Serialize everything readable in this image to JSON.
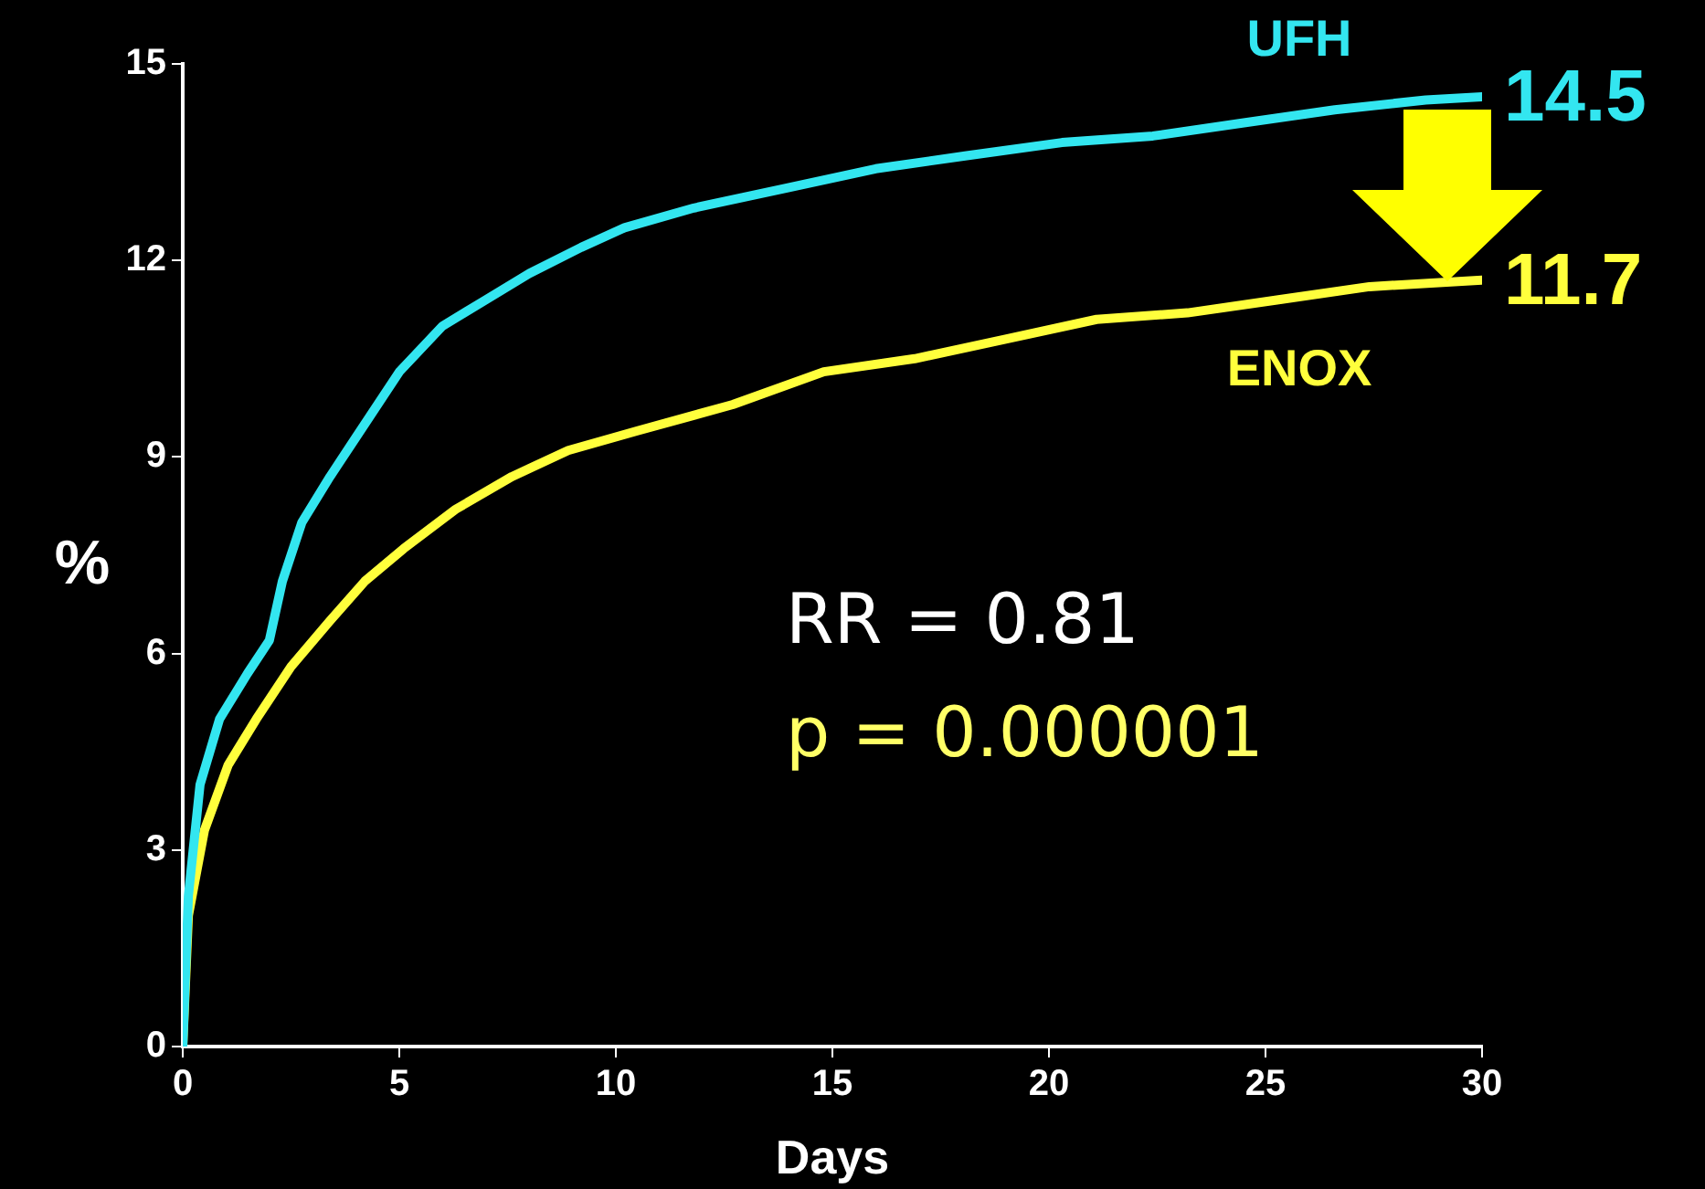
{
  "chart_data": {
    "type": "line",
    "xlabel": "Days",
    "ylabel": "%",
    "xlim": [
      0,
      30
    ],
    "ylim": [
      0,
      15
    ],
    "xticks": [
      0,
      5,
      10,
      15,
      20,
      25,
      30
    ],
    "yticks": [
      0,
      3,
      6,
      9,
      12,
      15
    ],
    "grid": false,
    "legend": false,
    "marker": "none",
    "line_style": "solid",
    "annotations": [
      "RR = 0.81",
      "p = 0.000001"
    ],
    "series": [
      {
        "name": "UFH",
        "color": "#33e6f0",
        "x": [
          0,
          0.13,
          0.4,
          0.85,
          1.5,
          2,
          2.3,
          2.75,
          3.4,
          4,
          5,
          6,
          7,
          8,
          9.2,
          10.2,
          11.8,
          13.9,
          16,
          18.1,
          20.3,
          22.4,
          24.5,
          26.6,
          28.7,
          30
        ],
        "values": [
          0,
          2.3,
          4.0,
          5.0,
          5.7,
          6.2,
          7.1,
          8.0,
          8.7,
          9.3,
          10.3,
          11.0,
          11.4,
          11.8,
          12.2,
          12.5,
          12.8,
          13.1,
          13.4,
          13.6,
          13.8,
          13.9,
          14.1,
          14.3,
          14.45,
          14.5
        ],
        "value_labels": [
          null,
          null,
          null,
          null,
          null,
          null,
          null,
          null,
          null,
          null,
          null,
          null,
          null,
          null,
          null,
          null,
          null,
          null,
          null,
          null,
          null,
          null,
          null,
          null,
          null,
          "14.5"
        ]
      },
      {
        "name": "ENOX",
        "color": "#ffff3c",
        "x": [
          0,
          0.13,
          0.5,
          1.05,
          1.7,
          2.5,
          3.4,
          4.2,
          5.1,
          6.3,
          7.6,
          8.9,
          10.5,
          12.7,
          14.8,
          16.9,
          19,
          21.1,
          23.2,
          25.3,
          27.4,
          30
        ],
        "values": [
          0,
          2.0,
          3.3,
          4.3,
          5.0,
          5.8,
          6.5,
          7.1,
          7.6,
          8.2,
          8.7,
          9.1,
          9.4,
          9.8,
          10.3,
          10.5,
          10.8,
          11.1,
          11.2,
          11.4,
          11.6,
          11.7
        ],
        "value_labels": [
          null,
          null,
          null,
          null,
          null,
          null,
          null,
          null,
          null,
          null,
          null,
          null,
          null,
          null,
          null,
          null,
          null,
          null,
          null,
          null,
          null,
          "11.7"
        ]
      }
    ]
  }
}
